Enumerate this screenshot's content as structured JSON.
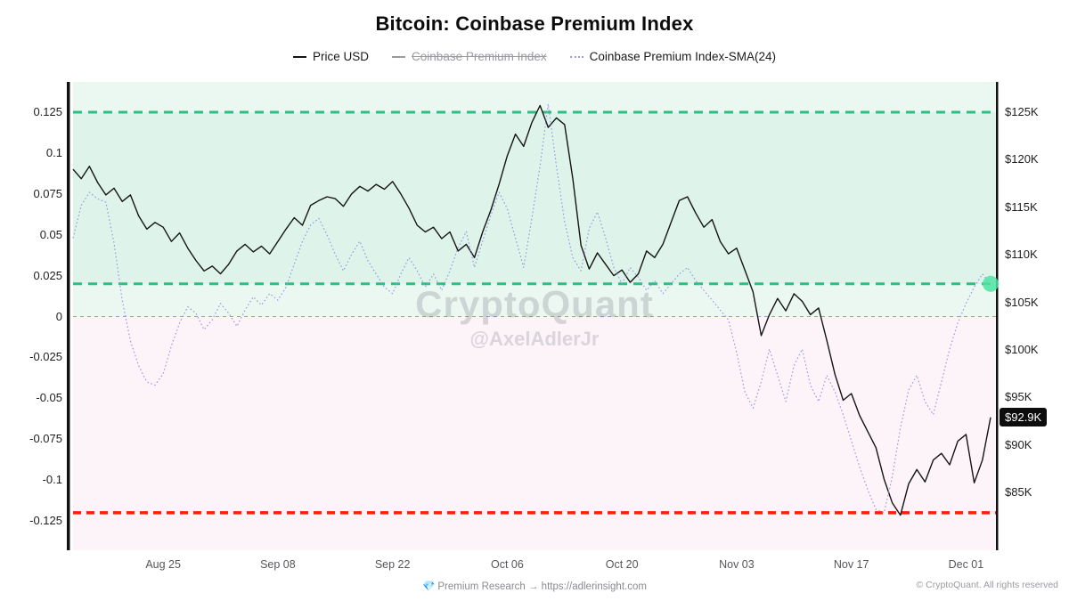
{
  "chart_data": {
    "type": "line",
    "title": "Bitcoin: Coinbase Premium Index",
    "watermark": {
      "line1": "CryptoQuant",
      "line2": "@AxelAdlerJr"
    },
    "legend": [
      {
        "label": "Price USD",
        "color": "#141414",
        "style": "solid",
        "disabled": false
      },
      {
        "label": "Coinbase Premium Index",
        "color": "#9a9aa0",
        "style": "solid",
        "disabled": true
      },
      {
        "label": "Coinbase Premium Index-SMA(24)",
        "color": "#9a9ae0",
        "style": "dotted",
        "disabled": false
      }
    ],
    "left_axis": {
      "ticks": [
        {
          "label": "0.125",
          "value": 0.125
        },
        {
          "label": "0.1",
          "value": 0.1
        },
        {
          "label": "0.075",
          "value": 0.075
        },
        {
          "label": "0.05",
          "value": 0.05
        },
        {
          "label": "0.025",
          "value": 0.025
        },
        {
          "label": "0",
          "value": 0
        },
        {
          "label": "-0.025",
          "value": -0.025
        },
        {
          "label": "-0.05",
          "value": -0.05
        },
        {
          "label": "-0.075",
          "value": -0.075
        },
        {
          "label": "-0.1",
          "value": -0.1
        },
        {
          "label": "-0.125",
          "value": -0.125
        }
      ],
      "range": [
        -0.155,
        0.145
      ]
    },
    "right_axis": {
      "ticks": [
        {
          "label": "$125K",
          "value": 125
        },
        {
          "label": "$120K",
          "value": 120
        },
        {
          "label": "$115K",
          "value": 115
        },
        {
          "label": "$110K",
          "value": 110
        },
        {
          "label": "$105K",
          "value": 105
        },
        {
          "label": "$100K",
          "value": 100
        },
        {
          "label": "$95K",
          "value": 95
        },
        {
          "label": "$90K",
          "value": 90
        },
        {
          "label": "$85K",
          "value": 85
        }
      ]
    },
    "x_ticks": [
      {
        "label": "Aug 25",
        "day": 11
      },
      {
        "label": "Sep 08",
        "day": 25
      },
      {
        "label": "Sep 22",
        "day": 39
      },
      {
        "label": "Oct 06",
        "day": 53
      },
      {
        "label": "Oct 20",
        "day": 67
      },
      {
        "label": "Nov 03",
        "day": 81
      },
      {
        "label": "Nov 17",
        "day": 95
      },
      {
        "label": "Dec 01",
        "day": 109
      }
    ],
    "zones": [
      {
        "from": 0,
        "to": 0.158,
        "color": "rgba(63,191,130,0.10)"
      },
      {
        "from": 0.02,
        "to": 0.125,
        "color": "rgba(63,191,130,0.07)"
      },
      {
        "from": -0.16,
        "to": 0,
        "color": "rgba(232,106,168,0.07)"
      }
    ],
    "reference_lines": [
      {
        "value": 0.125,
        "color": "#2fbe82",
        "width": 3,
        "dash": "10 7",
        "name": "upper-green-band"
      },
      {
        "value": 0.02,
        "color": "#2fbe82",
        "width": 3,
        "dash": "10 7",
        "name": "lower-green-band"
      },
      {
        "value": 0,
        "color": "#9b9bdf",
        "width": 1,
        "dash": "4 4",
        "name": "zero-line"
      },
      {
        "value": -0.12,
        "color": "#ff1e00",
        "width": 3.5,
        "dash": "9 6",
        "name": "red-support-line"
      }
    ],
    "series": [
      {
        "name": "Price USD",
        "axis": "price",
        "unit": "K USD",
        "color": "#141414",
        "width": 1.4,
        "dash": "",
        "values": [
          119.0,
          118.0,
          119.3,
          117.6,
          116.3,
          117.0,
          115.6,
          116.3,
          114.1,
          112.7,
          113.4,
          112.9,
          111.4,
          112.3,
          110.7,
          109.4,
          108.3,
          108.8,
          108.0,
          109.0,
          110.4,
          111.1,
          110.3,
          110.9,
          110.1,
          111.4,
          112.7,
          113.9,
          113.1,
          115.2,
          115.7,
          116.1,
          115.9,
          115.1,
          116.4,
          117.2,
          116.7,
          117.4,
          116.9,
          117.7,
          116.4,
          114.9,
          113.1,
          112.4,
          112.9,
          111.7,
          112.4,
          110.4,
          111.1,
          109.7,
          112.4,
          114.7,
          117.4,
          120.4,
          122.7,
          121.4,
          123.9,
          125.7,
          123.4,
          124.4,
          123.7,
          118.0,
          111.0,
          108.5,
          110.2,
          109.0,
          107.8,
          108.4,
          107.1,
          108.0,
          110.4,
          109.7,
          111.1,
          113.4,
          115.7,
          116.1,
          114.4,
          112.9,
          113.7,
          111.4,
          110.1,
          110.7,
          108.4,
          106.1,
          101.5,
          103.7,
          105.4,
          104.1,
          105.9,
          105.1,
          103.7,
          104.4,
          101.0,
          97.4,
          94.7,
          95.4,
          93.1,
          91.4,
          89.7,
          86.4,
          83.9,
          82.6,
          85.9,
          87.4,
          86.1,
          88.4,
          89.1,
          87.9,
          90.4,
          91.1,
          86.0,
          88.4,
          92.9
        ]
      },
      {
        "name": "Coinbase Premium Index-SMA(24)",
        "axis": "premium",
        "color": "#9a9ae0",
        "width": 1.2,
        "dash": "1.6 2.6",
        "values": [
          0.048,
          0.068,
          0.076,
          0.072,
          0.07,
          0.045,
          0.01,
          -0.015,
          -0.03,
          -0.04,
          -0.042,
          -0.035,
          -0.018,
          -0.004,
          0.006,
          0.002,
          -0.008,
          -0.002,
          0.008,
          0.002,
          -0.006,
          0.004,
          0.012,
          0.007,
          0.014,
          0.01,
          0.018,
          0.032,
          0.046,
          0.056,
          0.06,
          0.05,
          0.038,
          0.028,
          0.038,
          0.046,
          0.034,
          0.026,
          0.018,
          0.014,
          0.026,
          0.036,
          0.028,
          0.018,
          0.026,
          0.016,
          0.028,
          0.042,
          0.052,
          0.03,
          0.046,
          0.062,
          0.076,
          0.066,
          0.048,
          0.03,
          0.06,
          0.092,
          0.13,
          0.092,
          0.058,
          0.036,
          0.028,
          0.054,
          0.064,
          0.048,
          0.03,
          0.02,
          0.03,
          0.024,
          0.016,
          0.022,
          0.014,
          0.02,
          0.026,
          0.03,
          0.022,
          0.016,
          0.01,
          0.004,
          -0.002,
          -0.022,
          -0.046,
          -0.056,
          -0.04,
          -0.02,
          -0.036,
          -0.052,
          -0.03,
          -0.02,
          -0.042,
          -0.052,
          -0.036,
          -0.046,
          -0.06,
          -0.076,
          -0.092,
          -0.106,
          -0.118,
          -0.12,
          -0.098,
          -0.068,
          -0.045,
          -0.036,
          -0.052,
          -0.06,
          -0.04,
          -0.02,
          -0.004,
          0.008,
          0.018,
          0.026,
          0.02
        ]
      }
    ],
    "last_price_label": "$92.9K",
    "last_price_value": 92.9,
    "last_sma_marker": {
      "day": 112,
      "value": 0.02,
      "color": "#4fe3a3"
    }
  },
  "footer": {
    "icon": "💎",
    "center": "Premium Research → https://adlerinsight.com",
    "right": "© CryptoQuant. All rights reserved"
  }
}
